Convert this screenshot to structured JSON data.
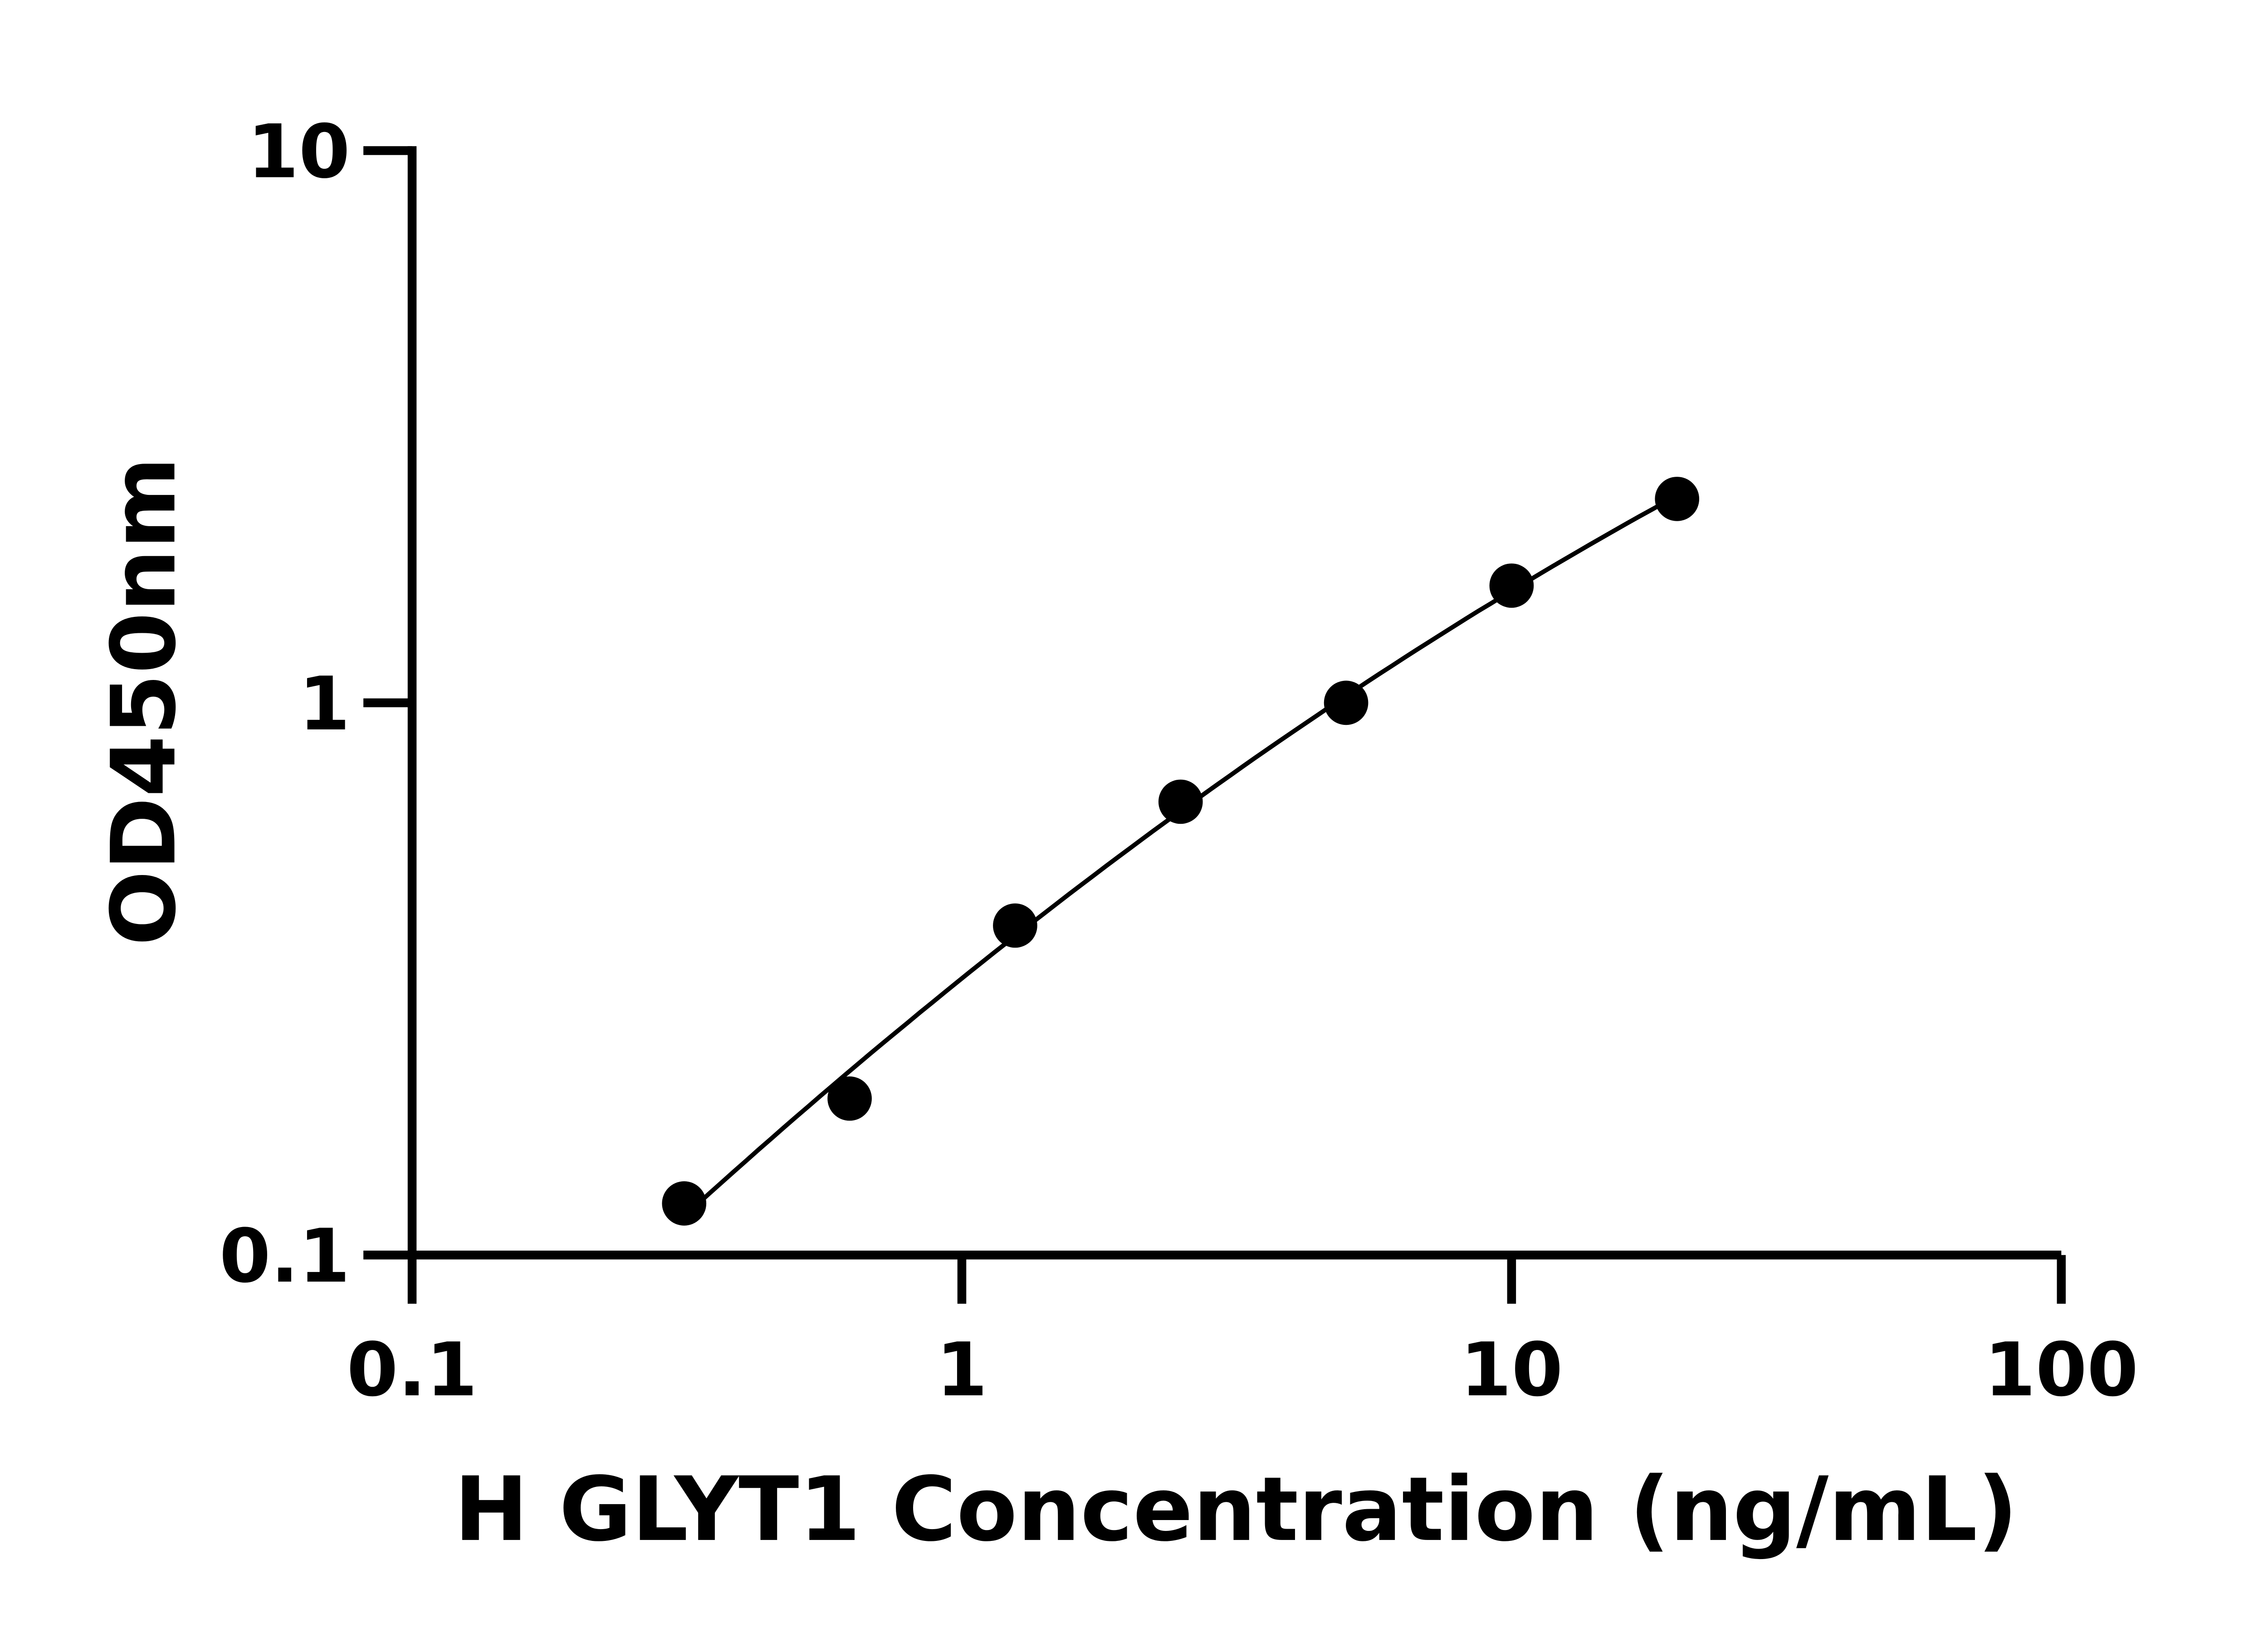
{
  "chart_data": {
    "type": "scatter",
    "title": "",
    "xlabel": "H GLYT1 Concentration (ng/mL)",
    "ylabel": "OD450nm",
    "xscale": "log",
    "yscale": "log",
    "xlim": [
      0.1,
      100
    ],
    "ylim": [
      0.1,
      10
    ],
    "xticks": [
      "0.1",
      "1",
      "10",
      "100"
    ],
    "yticks": [
      "0.1",
      "1",
      "10"
    ],
    "grid": false,
    "legend": "none",
    "fit_curve": true,
    "color": "#000000",
    "points": [
      {
        "x": 0.3125,
        "y": 0.124
      },
      {
        "x": 0.625,
        "y": 0.192
      },
      {
        "x": 1.25,
        "y": 0.395
      },
      {
        "x": 2.5,
        "y": 0.662
      },
      {
        "x": 5,
        "y": 1.0
      },
      {
        "x": 10,
        "y": 1.63
      },
      {
        "x": 20,
        "y": 2.34
      }
    ]
  }
}
